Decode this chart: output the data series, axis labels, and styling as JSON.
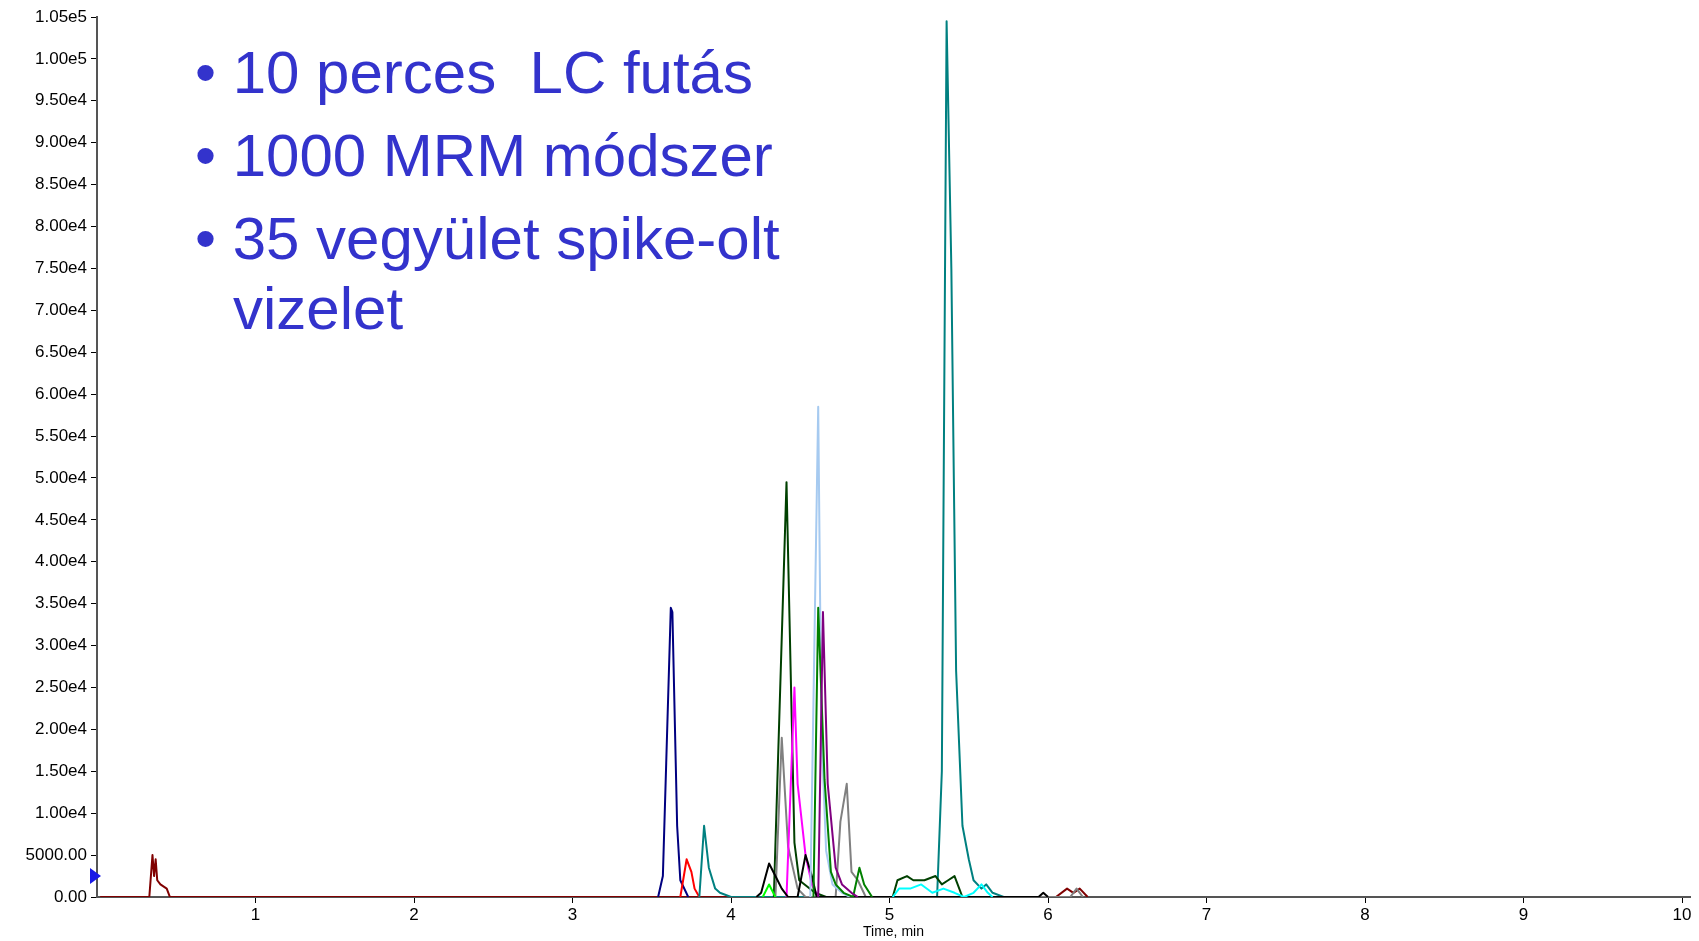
{
  "chart_data": {
    "type": "line",
    "xlabel": "Time, min",
    "annotations": [
      "• 10 perces  LC futás",
      "• 1000 MRM módszer",
      "• 35 vegyület spike-olt vizelet"
    ],
    "xlim": [
      0,
      10.05
    ],
    "xticks": [
      1,
      2,
      3,
      4,
      5,
      6,
      7,
      8,
      9,
      10
    ],
    "ylim": [
      0,
      105000
    ],
    "yticks": [
      {
        "value": 0,
        "label": "0.00"
      },
      {
        "value": 5000,
        "label": "5000.00"
      },
      {
        "value": 10000,
        "label": "1.00e4"
      },
      {
        "value": 15000,
        "label": "1.50e4"
      },
      {
        "value": 20000,
        "label": "2.00e4"
      },
      {
        "value": 25000,
        "label": "2.50e4"
      },
      {
        "value": 30000,
        "label": "3.00e4"
      },
      {
        "value": 35000,
        "label": "3.50e4"
      },
      {
        "value": 40000,
        "label": "4.00e4"
      },
      {
        "value": 45000,
        "label": "4.50e4"
      },
      {
        "value": 50000,
        "label": "5.00e4"
      },
      {
        "value": 55000,
        "label": "5.50e4"
      },
      {
        "value": 60000,
        "label": "6.00e4"
      },
      {
        "value": 65000,
        "label": "6.50e4"
      },
      {
        "value": 70000,
        "label": "7.00e4"
      },
      {
        "value": 75000,
        "label": "7.50e4"
      },
      {
        "value": 80000,
        "label": "8.00e4"
      },
      {
        "value": 85000,
        "label": "8.50e4"
      },
      {
        "value": 90000,
        "label": "9.00e4"
      },
      {
        "value": 95000,
        "label": "9.50e4"
      },
      {
        "value": 100000,
        "label": "1.00e5"
      },
      {
        "value": 105000,
        "label": "1.05e5"
      }
    ],
    "grid": false,
    "legend": false,
    "marker": "none",
    "line_style": "solid",
    "series": [
      {
        "color": "#800000",
        "x": [
          0.02,
          0.33,
          0.35,
          0.36,
          0.37,
          0.38,
          0.4,
          0.44,
          0.46,
          0.8,
          6.05,
          6.12,
          6.16,
          6.2,
          6.25
        ],
        "values": [
          0,
          0,
          5000,
          2500,
          4500,
          2000,
          1500,
          1000,
          0,
          0,
          0,
          1000,
          500,
          1000,
          0
        ]
      },
      {
        "color": "#000080",
        "x": [
          3.54,
          3.57,
          3.62,
          3.63,
          3.66,
          3.68,
          3.73
        ],
        "values": [
          0,
          2500,
          34500,
          34000,
          8500,
          2000,
          0
        ]
      },
      {
        "color": "#ff0000",
        "x": [
          3.68,
          3.72,
          3.75,
          3.77,
          3.8
        ],
        "values": [
          0,
          4500,
          3000,
          1000,
          0
        ]
      },
      {
        "color": "#008080",
        "x": [
          3.8,
          3.83,
          3.86,
          3.9,
          3.93,
          4.0,
          5.3,
          5.33,
          5.36,
          5.39,
          5.42,
          5.46,
          5.5,
          5.53,
          5.58,
          5.61,
          5.65,
          5.72
        ],
        "values": [
          0,
          8500,
          3500,
          1000,
          500,
          0,
          0,
          15000,
          104500,
          75000,
          27000,
          8500,
          4500,
          2000,
          1000,
          1500,
          500,
          0
        ]
      },
      {
        "color": "#004000",
        "x": [
          4.27,
          4.35,
          4.4,
          4.43,
          4.53,
          4.6,
          5.02,
          5.05,
          5.11,
          5.15,
          5.22,
          5.29,
          5.33,
          5.37,
          5.41,
          5.46
        ],
        "values": [
          0,
          49500,
          6500,
          2000,
          500,
          0,
          0,
          2000,
          2500,
          2000,
          2000,
          2500,
          1500,
          2000,
          2500,
          0
        ]
      },
      {
        "color": "#808080",
        "x": [
          4.28,
          4.32,
          4.36,
          4.42,
          4.47,
          4.66,
          4.69,
          4.73,
          4.76,
          4.8,
          4.85,
          6.14,
          6.18,
          6.22
        ],
        "values": [
          0,
          19000,
          6000,
          1000,
          0,
          0,
          9000,
          13500,
          3000,
          2000,
          0,
          0,
          1000,
          0
        ]
      },
      {
        "color": "#ff00ff",
        "x": [
          4.35,
          4.4,
          4.42,
          4.47,
          4.51,
          4.55
        ],
        "values": [
          0,
          25000,
          13500,
          5000,
          1500,
          0
        ]
      },
      {
        "color": "#000000",
        "x": [
          4.16,
          4.19,
          4.24,
          4.28,
          4.32,
          4.36,
          4.42,
          4.47,
          4.51,
          4.54,
          5.94,
          5.97,
          6.0
        ],
        "values": [
          0,
          500,
          4000,
          2500,
          1000,
          0,
          0,
          5000,
          2500,
          0,
          0,
          500,
          0
        ]
      },
      {
        "color": "#a6caf0",
        "x": [
          4.5,
          4.55,
          4.57,
          4.6,
          4.64,
          4.7,
          4.75
        ],
        "values": [
          0,
          58500,
          20000,
          5500,
          1500,
          500,
          0
        ]
      },
      {
        "color": "#008000",
        "x": [
          4.52,
          4.55,
          4.59,
          4.63,
          4.66,
          4.71,
          4.77,
          4.81,
          4.84,
          4.89
        ],
        "values": [
          0,
          34500,
          14000,
          3000,
          1500,
          500,
          0,
          3500,
          1500,
          0
        ]
      },
      {
        "color": "#800080",
        "x": [
          4.55,
          4.58,
          4.61,
          4.66,
          4.7,
          4.76,
          4.8
        ],
        "values": [
          0,
          34000,
          13500,
          3500,
          1500,
          500,
          0
        ]
      },
      {
        "color": "#00ffff",
        "x": [
          5.02,
          5.06,
          5.13,
          5.2,
          5.27,
          5.34,
          5.41,
          5.47,
          5.53,
          5.58,
          5.62,
          5.65
        ],
        "values": [
          0,
          1000,
          1000,
          1500,
          500,
          1000,
          500,
          0,
          500,
          1500,
          500,
          0
        ]
      },
      {
        "color": "#00ff00",
        "x": [
          4.2,
          4.24,
          4.28
        ],
        "values": [
          0,
          1500,
          0
        ]
      }
    ]
  }
}
